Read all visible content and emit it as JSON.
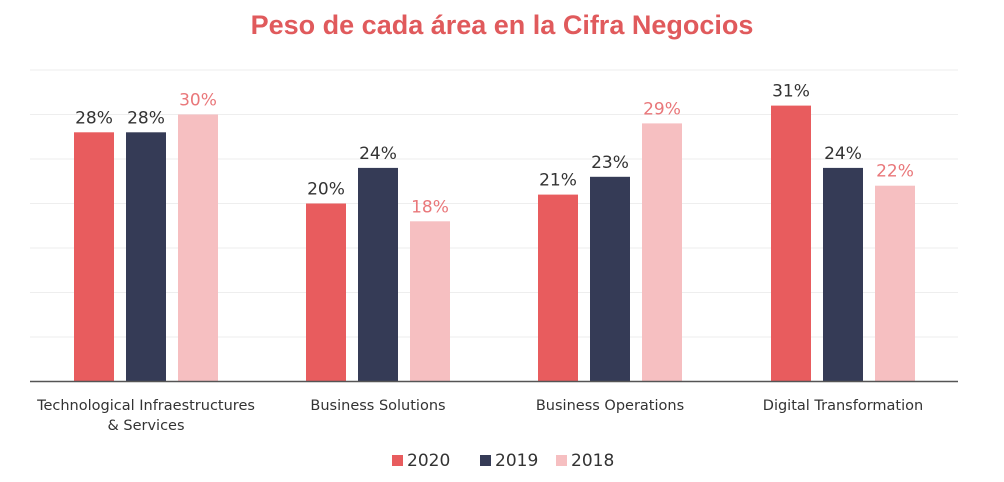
{
  "chart_data": {
    "type": "bar",
    "title": "Peso de cada área en la Cifra Negocios",
    "categories": [
      "Technological Infraestructures & Services",
      "Business Solutions",
      "Business Operations",
      "Digital Transformation"
    ],
    "category_label_lines": [
      [
        "Technological Infraestructures",
        "& Services"
      ],
      [
        "Business Solutions"
      ],
      [
        "Business Operations"
      ],
      [
        "Digital Transformation"
      ]
    ],
    "series": [
      {
        "name": "2020",
        "values": [
          28,
          20,
          21,
          31
        ],
        "labels": [
          "28%",
          "20%",
          "21%",
          "31%"
        ],
        "color": "#e85c5e",
        "label_color": "#333333"
      },
      {
        "name": "2019",
        "values": [
          28,
          24,
          23,
          24
        ],
        "labels": [
          "28%",
          "24%",
          "23%",
          "24%"
        ],
        "color": "#353b56",
        "label_color": "#333333"
      },
      {
        "name": "2018",
        "values": [
          30,
          18,
          29,
          22
        ],
        "labels": [
          "30%",
          "18%",
          "29%",
          "22%"
        ],
        "color": "#f6bfc1",
        "label_color": "#e9777a"
      }
    ],
    "ylim": [
      0,
      35
    ],
    "grid": true,
    "legend": "bottom-center",
    "xlabel": "",
    "ylabel": ""
  },
  "colors": {
    "title": "#e05a5c",
    "axis": "#555555",
    "grid": "#eeeeee"
  }
}
